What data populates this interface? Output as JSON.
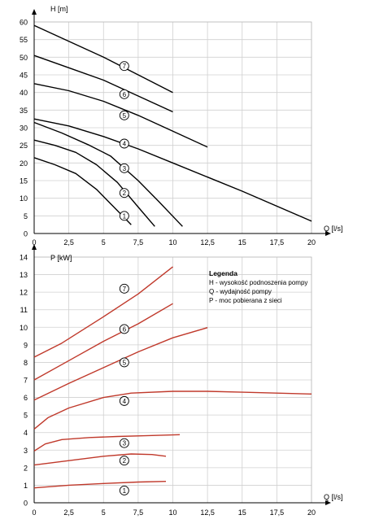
{
  "chart_data": [
    {
      "type": "line",
      "ylabel": "H [m]",
      "xlabel": "Q [l/s]",
      "xlim": [
        0,
        20
      ],
      "ylim": [
        0,
        60
      ],
      "xticks": [
        "0",
        "2,5",
        "5",
        "7,5",
        "10",
        "12,5",
        "15",
        "17,5",
        "20"
      ],
      "yticks": [
        "0",
        "5",
        "10",
        "15",
        "20",
        "25",
        "30",
        "35",
        "40",
        "45",
        "50",
        "55",
        "60"
      ],
      "grid": true,
      "line_color": "#000000",
      "series": [
        {
          "name": "1",
          "points": [
            [
              0,
              21.5
            ],
            [
              1.5,
              19.5
            ],
            [
              3,
              17
            ],
            [
              4.5,
              12.5
            ],
            [
              5.5,
              8.5
            ],
            [
              6.5,
              4.5
            ],
            [
              7,
              2.5
            ]
          ]
        },
        {
          "name": "2",
          "points": [
            [
              0,
              26.5
            ],
            [
              1.5,
              25
            ],
            [
              3,
              23
            ],
            [
              4.5,
              19.5
            ],
            [
              6,
              14.5
            ],
            [
              7.5,
              7.5
            ],
            [
              8.7,
              2
            ]
          ]
        },
        {
          "name": "3",
          "points": [
            [
              0,
              31.5
            ],
            [
              2,
              28.5
            ],
            [
              4,
              25
            ],
            [
              5.5,
              22
            ],
            [
              7.5,
              15
            ],
            [
              9,
              9
            ],
            [
              10.7,
              2
            ]
          ]
        },
        {
          "name": "4",
          "points": [
            [
              0,
              32.5
            ],
            [
              2.5,
              30.5
            ],
            [
              5,
              27.5
            ],
            [
              7.5,
              24
            ],
            [
              10,
              20
            ],
            [
              15,
              12
            ],
            [
              20,
              3.5
            ]
          ]
        },
        {
          "name": "5",
          "points": [
            [
              0,
              42.5
            ],
            [
              2.5,
              40.5
            ],
            [
              5,
              37.5
            ],
            [
              7.5,
              33.5
            ],
            [
              10,
              29
            ],
            [
              12.5,
              24.5
            ]
          ]
        },
        {
          "name": "6",
          "points": [
            [
              0,
              50.5
            ],
            [
              2.5,
              47
            ],
            [
              5,
              43.5
            ],
            [
              7.5,
              39
            ],
            [
              10,
              34.5
            ]
          ]
        },
        {
          "name": "7",
          "points": [
            [
              0,
              59
            ],
            [
              2.5,
              54.5
            ],
            [
              5,
              50
            ],
            [
              7.5,
              45
            ],
            [
              10,
              40
            ]
          ]
        }
      ],
      "labels": [
        {
          "text": "1",
          "x": 6.5,
          "y": 5
        },
        {
          "text": "2",
          "x": 6.5,
          "y": 11.5
        },
        {
          "text": "3",
          "x": 6.5,
          "y": 18.5
        },
        {
          "text": "4",
          "x": 6.5,
          "y": 25.5
        },
        {
          "text": "5",
          "x": 6.5,
          "y": 33.5
        },
        {
          "text": "6",
          "x": 6.5,
          "y": 39.5
        },
        {
          "text": "7",
          "x": 6.5,
          "y": 47.5
        }
      ]
    },
    {
      "type": "line",
      "ylabel": "P [kW]",
      "xlabel": "Q [l/s]",
      "xlim": [
        0,
        20
      ],
      "ylim": [
        0,
        14
      ],
      "xticks": [
        "0",
        "2,5",
        "5",
        "7,5",
        "10",
        "12,5",
        "15",
        "17,5",
        "20"
      ],
      "yticks": [
        "0",
        "1",
        "2",
        "3",
        "4",
        "5",
        "6",
        "7",
        "8",
        "9",
        "10",
        "11",
        "12",
        "13",
        "14"
      ],
      "grid": true,
      "line_color": "#c0392b",
      "series": [
        {
          "name": "1",
          "points": [
            [
              0,
              0.85
            ],
            [
              2.5,
              1.0
            ],
            [
              5,
              1.1
            ],
            [
              7.5,
              1.18
            ],
            [
              9.5,
              1.22
            ]
          ]
        },
        {
          "name": "2",
          "points": [
            [
              0,
              2.15
            ],
            [
              2.5,
              2.4
            ],
            [
              5,
              2.65
            ],
            [
              7,
              2.78
            ],
            [
              8.5,
              2.75
            ],
            [
              9.5,
              2.65
            ]
          ]
        },
        {
          "name": "3",
          "points": [
            [
              0,
              2.95
            ],
            [
              0.8,
              3.35
            ],
            [
              2,
              3.6
            ],
            [
              4,
              3.72
            ],
            [
              6,
              3.78
            ],
            [
              8,
              3.82
            ],
            [
              10.5,
              3.88
            ]
          ]
        },
        {
          "name": "4",
          "points": [
            [
              0,
              4.2
            ],
            [
              1,
              4.85
            ],
            [
              2.5,
              5.4
            ],
            [
              5,
              6.0
            ],
            [
              7,
              6.25
            ],
            [
              10,
              6.35
            ],
            [
              12.5,
              6.35
            ],
            [
              15,
              6.3
            ],
            [
              17.5,
              6.25
            ],
            [
              20,
              6.2
            ]
          ]
        },
        {
          "name": "5",
          "points": [
            [
              0,
              5.85
            ],
            [
              2.5,
              6.8
            ],
            [
              5,
              7.7
            ],
            [
              7.5,
              8.6
            ],
            [
              10,
              9.4
            ],
            [
              12.5,
              9.98
            ]
          ]
        },
        {
          "name": "6",
          "points": [
            [
              0,
              7.0
            ],
            [
              2.5,
              8.1
            ],
            [
              5,
              9.2
            ],
            [
              7.5,
              10.2
            ],
            [
              10,
              11.35
            ]
          ]
        },
        {
          "name": "7",
          "points": [
            [
              0,
              8.3
            ],
            [
              2,
              9.1
            ],
            [
              5,
              10.6
            ],
            [
              7.5,
              11.9
            ],
            [
              10,
              13.45
            ]
          ]
        }
      ],
      "labels": [
        {
          "text": "1",
          "x": 6.5,
          "y": 0.7
        },
        {
          "text": "2",
          "x": 6.5,
          "y": 2.4
        },
        {
          "text": "3",
          "x": 6.5,
          "y": 3.4
        },
        {
          "text": "4",
          "x": 6.5,
          "y": 5.8
        },
        {
          "text": "5",
          "x": 6.5,
          "y": 8.0
        },
        {
          "text": "6",
          "x": 6.5,
          "y": 9.9
        },
        {
          "text": "7",
          "x": 6.5,
          "y": 12.2
        }
      ]
    }
  ],
  "legend": {
    "title": "Legenda",
    "lines": [
      "H - wysokość podnoszenia pompy",
      "Q - wydajność pompy",
      "P - moc pobierana z sieci"
    ]
  }
}
